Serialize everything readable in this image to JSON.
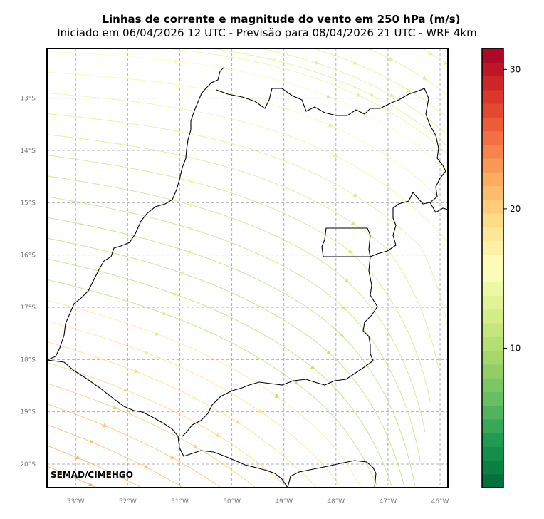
{
  "title": "Linhas de corrente e magnitude do vento em 250 hPa (m/s)",
  "subtitle": "Iniciado em 06/04/2026 12 UTC - Previsão para 08/04/2026 21 UTC - WRF 4km",
  "credit": "SEMAD/CIMEHGO",
  "lon_labels": [
    "53°W",
    "52°W",
    "51°W",
    "50°W",
    "49°W",
    "48°W",
    "47°W",
    "46°W"
  ],
  "lat_labels": [
    "13°S",
    "14°S",
    "15°S",
    "16°S",
    "17°S",
    "18°S",
    "19°S",
    "20°S"
  ],
  "colorbar": {
    "ticks": [
      "10",
      "20",
      "30"
    ],
    "range": [
      0,
      31.5
    ]
  },
  "map_extent": {
    "lon": [
      -53.55,
      -45.85
    ],
    "lat": [
      -20.45,
      -12.05
    ]
  }
}
